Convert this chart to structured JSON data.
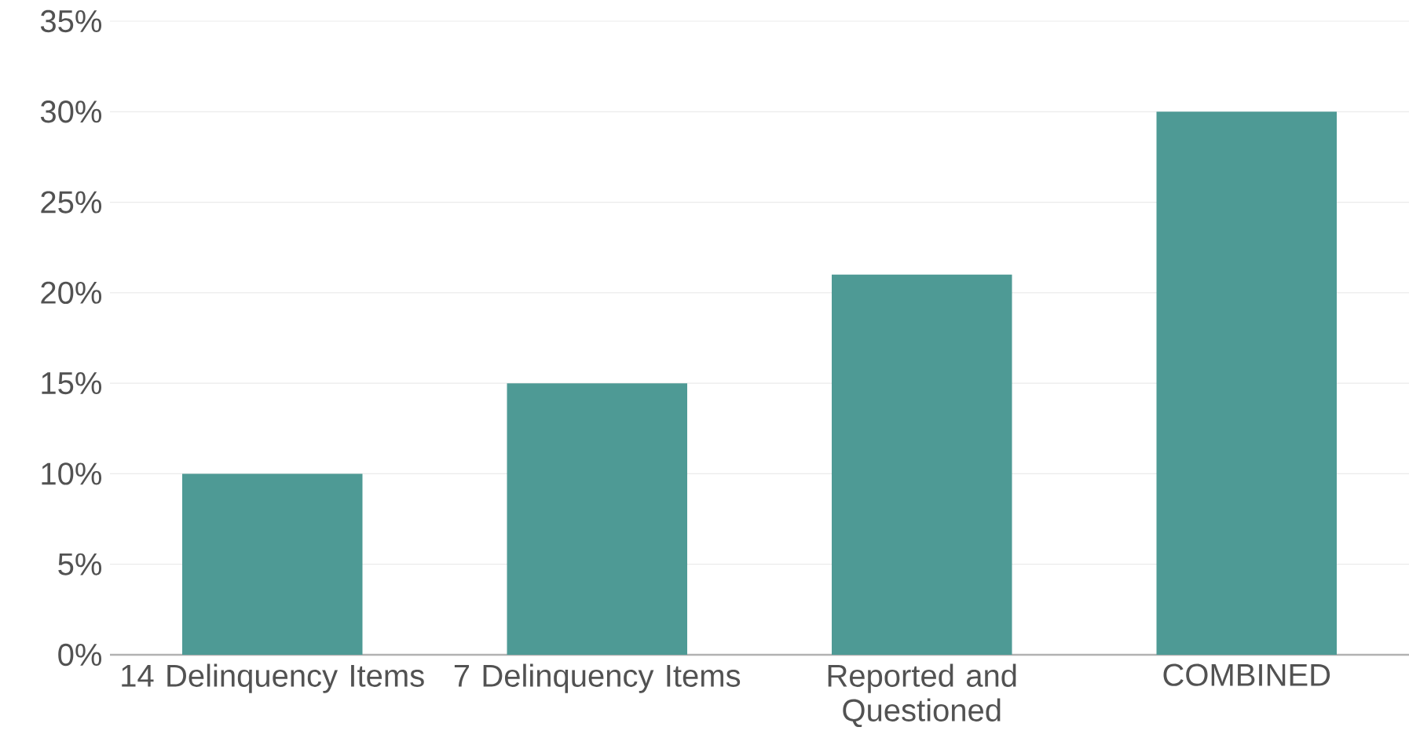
{
  "chart_data": {
    "type": "bar",
    "categories": [
      "14 Delinquency Items",
      "7 Delinquency Items",
      "Reported and Questioned",
      "COMBINED"
    ],
    "values": [
      10,
      15,
      21,
      30
    ],
    "color": "#4e9a95",
    "ylim": [
      0,
      35
    ],
    "yticks": [
      {
        "value": 0,
        "label": "0%"
      },
      {
        "value": 5,
        "label": "5%"
      },
      {
        "value": 10,
        "label": "10%"
      },
      {
        "value": 15,
        "label": "15%"
      },
      {
        "value": 20,
        "label": "20%"
      },
      {
        "value": 25,
        "label": "25%"
      },
      {
        "value": 30,
        "label": "30%"
      },
      {
        "value": 35,
        "label": "35%"
      }
    ],
    "grid": "y"
  }
}
